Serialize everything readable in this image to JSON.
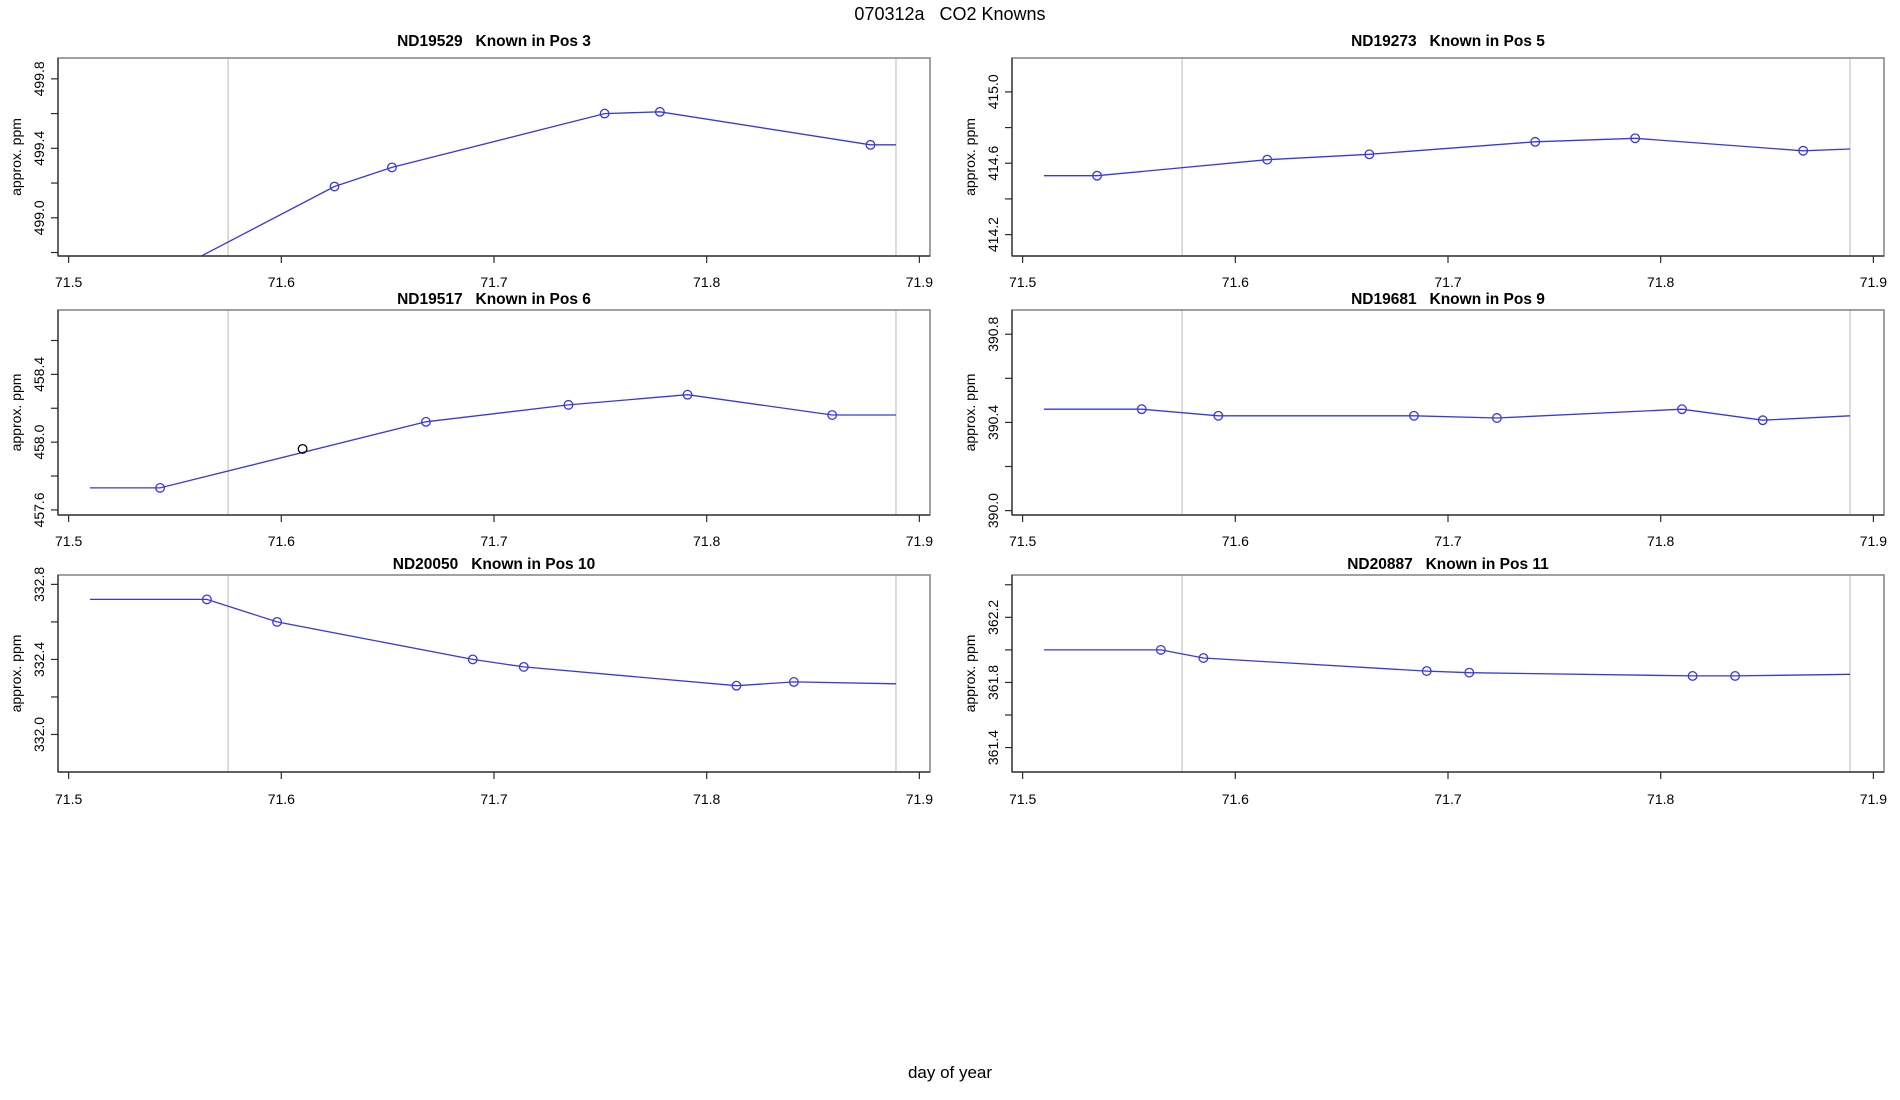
{
  "main_title": "070312a   CO2 Knowns",
  "xlabel": "day of year",
  "colors": {
    "series": "#3737e8",
    "outlier": "#000000",
    "guide_line": "#d4d4d4",
    "box": "#8a8a8a",
    "axis": "#2b2b2b",
    "text": "#000000",
    "background": "#ffffff"
  },
  "x_axis": {
    "lim": [
      71.495,
      71.905
    ],
    "ticks": [
      {
        "v": 71.5,
        "label": "71.5"
      },
      {
        "v": 71.6,
        "label": "71.6"
      },
      {
        "v": 71.7,
        "label": "71.7"
      },
      {
        "v": 71.8,
        "label": "71.8"
      },
      {
        "v": 71.9,
        "label": "71.9"
      }
    ],
    "guide_lines": [
      71.575,
      71.889
    ]
  },
  "chart_data": [
    {
      "type": "line",
      "title": "ND19529   Known in Pos 3",
      "ylabel": "approx. ppm",
      "ylim": [
        498.78,
        499.92
      ],
      "yticks": [
        {
          "v": 498.8,
          "label": ""
        },
        {
          "v": 499.0,
          "label": "499.0"
        },
        {
          "v": 499.2,
          "label": ""
        },
        {
          "v": 499.4,
          "label": "499.4"
        },
        {
          "v": 499.6,
          "label": ""
        },
        {
          "v": 499.8,
          "label": "499.8"
        }
      ],
      "line": [
        [
          71.51,
          498.6
        ],
        [
          71.553,
          498.72
        ],
        [
          71.625,
          499.18
        ],
        [
          71.652,
          499.29
        ],
        [
          71.752,
          499.6
        ],
        [
          71.778,
          499.61
        ],
        [
          71.877,
          499.42
        ],
        [
          71.889,
          499.42
        ]
      ],
      "markers": [
        [
          71.625,
          499.18
        ],
        [
          71.652,
          499.29
        ],
        [
          71.752,
          499.6
        ],
        [
          71.778,
          499.61
        ],
        [
          71.877,
          499.42
        ]
      ],
      "outliers": []
    },
    {
      "type": "line",
      "title": "ND19273   Known in Pos 5",
      "ylabel": "approx. ppm",
      "ylim": [
        414.08,
        415.19
      ],
      "yticks": [
        {
          "v": 414.2,
          "label": "414.2"
        },
        {
          "v": 414.4,
          "label": ""
        },
        {
          "v": 414.6,
          "label": "414.6"
        },
        {
          "v": 414.8,
          "label": ""
        },
        {
          "v": 415.0,
          "label": "415.0"
        }
      ],
      "line": [
        [
          71.51,
          414.53
        ],
        [
          71.535,
          414.53
        ],
        [
          71.615,
          414.62
        ],
        [
          71.663,
          414.65
        ],
        [
          71.741,
          414.72
        ],
        [
          71.788,
          414.74
        ],
        [
          71.867,
          414.67
        ],
        [
          71.889,
          414.68
        ]
      ],
      "markers": [
        [
          71.535,
          414.53
        ],
        [
          71.615,
          414.62
        ],
        [
          71.663,
          414.65
        ],
        [
          71.741,
          414.72
        ],
        [
          71.788,
          414.74
        ],
        [
          71.867,
          414.67
        ]
      ],
      "outliers": []
    },
    {
      "type": "line",
      "title": "ND19517   Known in Pos 6",
      "ylabel": "approx. ppm",
      "ylim": [
        457.57,
        458.78
      ],
      "yticks": [
        {
          "v": 457.6,
          "label": "457.6"
        },
        {
          "v": 457.8,
          "label": ""
        },
        {
          "v": 458.0,
          "label": "458.0"
        },
        {
          "v": 458.2,
          "label": ""
        },
        {
          "v": 458.4,
          "label": "458.4"
        },
        {
          "v": 458.6,
          "label": ""
        }
      ],
      "line": [
        [
          71.51,
          457.73
        ],
        [
          71.543,
          457.73
        ],
        [
          71.668,
          458.12
        ],
        [
          71.735,
          458.22
        ],
        [
          71.791,
          458.28
        ],
        [
          71.859,
          458.16
        ],
        [
          71.889,
          458.16
        ]
      ],
      "markers": [
        [
          71.543,
          457.73
        ],
        [
          71.668,
          458.12
        ],
        [
          71.735,
          458.22
        ],
        [
          71.791,
          458.28
        ],
        [
          71.859,
          458.16
        ]
      ],
      "outliers": [
        [
          71.61,
          457.96
        ]
      ]
    },
    {
      "type": "line",
      "title": "ND19681   Known in Pos 9",
      "ylabel": "approx. ppm",
      "ylim": [
        389.98,
        390.91
      ],
      "yticks": [
        {
          "v": 390.0,
          "label": "390.0"
        },
        {
          "v": 390.2,
          "label": ""
        },
        {
          "v": 390.4,
          "label": "390.4"
        },
        {
          "v": 390.6,
          "label": ""
        },
        {
          "v": 390.8,
          "label": "390.8"
        }
      ],
      "line": [
        [
          71.51,
          390.46
        ],
        [
          71.556,
          390.46
        ],
        [
          71.592,
          390.43
        ],
        [
          71.684,
          390.43
        ],
        [
          71.723,
          390.42
        ],
        [
          71.81,
          390.46
        ],
        [
          71.848,
          390.41
        ],
        [
          71.889,
          390.43
        ]
      ],
      "markers": [
        [
          71.556,
          390.46
        ],
        [
          71.592,
          390.43
        ],
        [
          71.684,
          390.43
        ],
        [
          71.723,
          390.42
        ],
        [
          71.81,
          390.46
        ],
        [
          71.848,
          390.41
        ]
      ],
      "outliers": []
    },
    {
      "type": "line",
      "title": "ND20050   Known in Pos 10",
      "ylabel": "approx. ppm",
      "ylim": [
        331.8,
        332.85
      ],
      "yticks": [
        {
          "v": 332.0,
          "label": "332.0"
        },
        {
          "v": 332.2,
          "label": ""
        },
        {
          "v": 332.4,
          "label": "332.4"
        },
        {
          "v": 332.6,
          "label": ""
        },
        {
          "v": 332.8,
          "label": "332.8"
        }
      ],
      "line": [
        [
          71.51,
          332.72
        ],
        [
          71.565,
          332.72
        ],
        [
          71.598,
          332.6
        ],
        [
          71.69,
          332.4
        ],
        [
          71.714,
          332.36
        ],
        [
          71.814,
          332.26
        ],
        [
          71.841,
          332.28
        ],
        [
          71.889,
          332.27
        ]
      ],
      "markers": [
        [
          71.565,
          332.72
        ],
        [
          71.598,
          332.6
        ],
        [
          71.69,
          332.4
        ],
        [
          71.714,
          332.36
        ],
        [
          71.814,
          332.26
        ],
        [
          71.841,
          332.28
        ]
      ],
      "outliers": []
    },
    {
      "type": "line",
      "title": "ND20887   Known in Pos 11",
      "ylabel": "approx. ppm",
      "ylim": [
        361.25,
        362.46
      ],
      "yticks": [
        {
          "v": 361.4,
          "label": "361.4"
        },
        {
          "v": 361.6,
          "label": ""
        },
        {
          "v": 361.8,
          "label": "361.8"
        },
        {
          "v": 362.0,
          "label": ""
        },
        {
          "v": 362.2,
          "label": "362.2"
        },
        {
          "v": 362.4,
          "label": ""
        }
      ],
      "line": [
        [
          71.51,
          362.0
        ],
        [
          71.565,
          362.0
        ],
        [
          71.585,
          361.95
        ],
        [
          71.69,
          361.87
        ],
        [
          71.71,
          361.86
        ],
        [
          71.815,
          361.84
        ],
        [
          71.835,
          361.84
        ],
        [
          71.889,
          361.85
        ]
      ],
      "markers": [
        [
          71.565,
          362.0
        ],
        [
          71.585,
          361.95
        ],
        [
          71.69,
          361.87
        ],
        [
          71.71,
          361.86
        ],
        [
          71.815,
          361.84
        ],
        [
          71.835,
          361.84
        ]
      ],
      "outliers": []
    }
  ]
}
